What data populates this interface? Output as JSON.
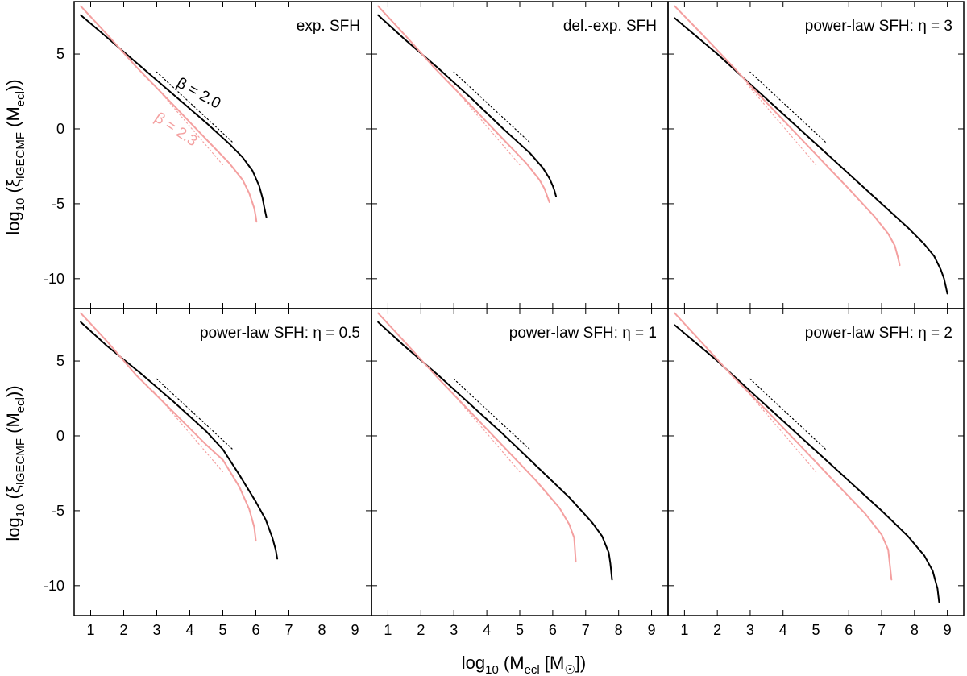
{
  "figure": {
    "xlabel": "log₁₀ (Mecl [M☉])",
    "ylabel": "log₁₀ (ξIGECMF (Mecl))",
    "colors": {
      "black": "#000000",
      "pink": "#f4a0a0"
    }
  },
  "chart_data": [
    {
      "type": "line",
      "title": "exp. SFH",
      "xlim": [
        0.5,
        9.5
      ],
      "ylim": [
        -12,
        8.5
      ],
      "xticks": [
        1,
        2,
        3,
        4,
        5,
        6,
        7,
        8,
        9
      ],
      "yticks": [
        5,
        0,
        -5,
        -10
      ],
      "series": [
        {
          "color": "black",
          "style": "solid",
          "x": [
            0.7,
            1.5,
            2.5,
            3.5,
            4.5,
            5.2,
            5.6,
            5.9,
            6.1,
            6.2,
            6.25,
            6.3,
            6.32
          ],
          "y": [
            7.6,
            6.1,
            4.2,
            2.3,
            0.4,
            -1.0,
            -1.9,
            -2.8,
            -3.8,
            -4.6,
            -5.2,
            -5.7,
            -5.9
          ]
        },
        {
          "color": "pink",
          "style": "solid",
          "x": [
            0.7,
            1.5,
            2.4,
            3.5,
            4.5,
            5.2,
            5.6,
            5.8,
            5.95,
            6.0,
            6.02
          ],
          "y": [
            8.2,
            6.3,
            4.1,
            1.6,
            -0.7,
            -2.3,
            -3.4,
            -4.3,
            -5.3,
            -5.9,
            -6.2
          ]
        },
        {
          "color": "black",
          "style": "dotted",
          "x": [
            3.0,
            5.3
          ],
          "y": [
            3.8,
            -0.9
          ]
        },
        {
          "color": "pink",
          "style": "dotted",
          "x": [
            2.9,
            5.0
          ],
          "y": [
            3.0,
            -2.4
          ]
        }
      ],
      "annotations": [
        {
          "text": "β = 2.0",
          "color": "black",
          "x": 4.2,
          "y": 2.1,
          "angle": 29
        },
        {
          "text": "β = 2.3",
          "color": "pink",
          "x": 3.5,
          "y": -0.3,
          "angle": 34
        }
      ]
    },
    {
      "type": "line",
      "title": "del.-exp. SFH",
      "xlim": [
        0.5,
        9.5
      ],
      "ylim": [
        -12,
        8.5
      ],
      "xticks": [
        1,
        2,
        3,
        4,
        5,
        6,
        7,
        8,
        9
      ],
      "yticks": [
        5,
        0,
        -5,
        -10
      ],
      "series": [
        {
          "color": "black",
          "style": "solid",
          "x": [
            0.7,
            1.5,
            2.5,
            3.5,
            4.5,
            5.3,
            5.7,
            5.9,
            6.0,
            6.05,
            6.1
          ],
          "y": [
            7.6,
            6.0,
            4.1,
            2.1,
            0.0,
            -1.6,
            -2.6,
            -3.3,
            -3.8,
            -4.1,
            -4.5
          ]
        },
        {
          "color": "pink",
          "style": "solid",
          "x": [
            0.7,
            1.5,
            2.4,
            3.5,
            4.5,
            5.2,
            5.6,
            5.75,
            5.85,
            5.9
          ],
          "y": [
            8.2,
            6.3,
            4.1,
            1.6,
            -0.7,
            -2.3,
            -3.4,
            -4.0,
            -4.6,
            -4.9
          ]
        },
        {
          "color": "black",
          "style": "dotted",
          "x": [
            3.0,
            5.3
          ],
          "y": [
            3.8,
            -0.9
          ]
        },
        {
          "color": "pink",
          "style": "dotted",
          "x": [
            2.9,
            5.0
          ],
          "y": [
            3.0,
            -2.4
          ]
        }
      ],
      "annotations": []
    },
    {
      "type": "line",
      "title": "power-law SFH: η = 3",
      "xlim": [
        0.5,
        9.5
      ],
      "ylim": [
        -12,
        8.5
      ],
      "xticks": [
        1,
        2,
        3,
        4,
        5,
        6,
        7,
        8,
        9
      ],
      "yticks": [
        5,
        0,
        -5,
        -10
      ],
      "series": [
        {
          "color": "black",
          "style": "solid",
          "x": [
            0.7,
            2.0,
            3.0,
            4.0,
            5.0,
            6.0,
            7.0,
            7.8,
            8.3,
            8.6,
            8.8,
            8.9,
            8.95,
            9.0
          ],
          "y": [
            7.4,
            5.0,
            3.0,
            1.0,
            -1.0,
            -3.0,
            -5.0,
            -6.6,
            -7.7,
            -8.5,
            -9.4,
            -10.0,
            -10.5,
            -11.0
          ]
        },
        {
          "color": "pink",
          "style": "solid",
          "x": [
            0.7,
            1.5,
            2.5,
            3.0,
            4.0,
            5.0,
            6.0,
            6.8,
            7.2,
            7.4,
            7.5,
            7.55
          ],
          "y": [
            8.2,
            6.4,
            4.1,
            2.9,
            0.6,
            -1.7,
            -4.0,
            -5.9,
            -7.0,
            -7.8,
            -8.6,
            -9.1
          ]
        },
        {
          "color": "black",
          "style": "dotted",
          "x": [
            3.0,
            5.3
          ],
          "y": [
            3.8,
            -0.9
          ]
        },
        {
          "color": "pink",
          "style": "dotted",
          "x": [
            2.9,
            5.0
          ],
          "y": [
            3.0,
            -2.4
          ]
        }
      ],
      "annotations": []
    },
    {
      "type": "line",
      "title": "power-law SFH: η = 0.5",
      "xlim": [
        0.5,
        9.5
      ],
      "ylim": [
        -12,
        8.5
      ],
      "xticks": [
        1,
        2,
        3,
        4,
        5,
        6,
        7,
        8,
        9
      ],
      "yticks": [
        5,
        0,
        -5,
        -10
      ],
      "series": [
        {
          "color": "black",
          "style": "solid",
          "x": [
            0.7,
            1.5,
            2.5,
            3.5,
            4.5,
            5.0,
            5.5,
            6.0,
            6.3,
            6.5,
            6.6,
            6.65
          ],
          "y": [
            7.6,
            6.0,
            4.2,
            2.3,
            0.3,
            -0.9,
            -2.6,
            -4.4,
            -5.6,
            -6.8,
            -7.6,
            -8.2
          ]
        },
        {
          "color": "pink",
          "style": "solid",
          "x": [
            0.7,
            1.5,
            2.4,
            3.5,
            4.5,
            5.0,
            5.5,
            5.8,
            5.95,
            6.0
          ],
          "y": [
            8.2,
            6.3,
            4.0,
            1.6,
            -0.6,
            -1.6,
            -3.4,
            -4.9,
            -6.1,
            -7.0
          ]
        },
        {
          "color": "black",
          "style": "dotted",
          "x": [
            3.0,
            5.3
          ],
          "y": [
            3.8,
            -0.9
          ]
        },
        {
          "color": "pink",
          "style": "dotted",
          "x": [
            2.9,
            5.0
          ],
          "y": [
            3.0,
            -2.4
          ]
        }
      ],
      "annotations": []
    },
    {
      "type": "line",
      "title": "power-law SFH: η = 1",
      "xlim": [
        0.5,
        9.5
      ],
      "ylim": [
        -12,
        8.5
      ],
      "xticks": [
        1,
        2,
        3,
        4,
        5,
        6,
        7,
        8,
        9
      ],
      "yticks": [
        5,
        0,
        -5,
        -10
      ],
      "series": [
        {
          "color": "black",
          "style": "solid",
          "x": [
            0.7,
            1.5,
            2.5,
            3.5,
            4.5,
            5.5,
            6.5,
            7.2,
            7.5,
            7.7,
            7.75,
            7.8
          ],
          "y": [
            7.6,
            6.0,
            4.1,
            2.1,
            0.1,
            -2.0,
            -4.1,
            -5.8,
            -6.7,
            -7.8,
            -8.5,
            -9.6
          ]
        },
        {
          "color": "pink",
          "style": "solid",
          "x": [
            0.7,
            1.5,
            2.5,
            3.5,
            4.5,
            5.5,
            6.2,
            6.5,
            6.65,
            6.7
          ],
          "y": [
            8.2,
            6.3,
            3.9,
            1.6,
            -0.7,
            -3.0,
            -4.8,
            -5.9,
            -6.8,
            -8.4
          ]
        },
        {
          "color": "black",
          "style": "dotted",
          "x": [
            3.0,
            5.3
          ],
          "y": [
            3.8,
            -0.9
          ]
        },
        {
          "color": "pink",
          "style": "dotted",
          "x": [
            2.9,
            5.0
          ],
          "y": [
            3.0,
            -2.4
          ]
        }
      ],
      "annotations": []
    },
    {
      "type": "line",
      "title": "power-law SFH: η = 2",
      "xlim": [
        0.5,
        9.5
      ],
      "ylim": [
        -12,
        8.5
      ],
      "xticks": [
        1,
        2,
        3,
        4,
        5,
        6,
        7,
        8,
        9
      ],
      "yticks": [
        5,
        0,
        -5,
        -10
      ],
      "series": [
        {
          "color": "black",
          "style": "solid",
          "x": [
            0.7,
            2.0,
            3.0,
            4.0,
            5.0,
            6.0,
            7.0,
            7.8,
            8.3,
            8.55,
            8.7,
            8.75
          ],
          "y": [
            7.4,
            5.0,
            3.0,
            1.0,
            -1.0,
            -3.0,
            -5.0,
            -6.7,
            -8.0,
            -9.0,
            -10.2,
            -11.1
          ]
        },
        {
          "color": "pink",
          "style": "solid",
          "x": [
            0.7,
            1.5,
            2.5,
            3.5,
            4.5,
            5.5,
            6.5,
            7.0,
            7.2,
            7.3
          ],
          "y": [
            8.2,
            6.3,
            3.9,
            1.7,
            -0.6,
            -2.9,
            -5.2,
            -6.6,
            -7.6,
            -9.6
          ]
        },
        {
          "color": "black",
          "style": "dotted",
          "x": [
            3.0,
            5.3
          ],
          "y": [
            3.8,
            -0.9
          ]
        },
        {
          "color": "pink",
          "style": "dotted",
          "x": [
            2.9,
            5.0
          ],
          "y": [
            3.0,
            -2.4
          ]
        }
      ],
      "annotations": []
    }
  ]
}
